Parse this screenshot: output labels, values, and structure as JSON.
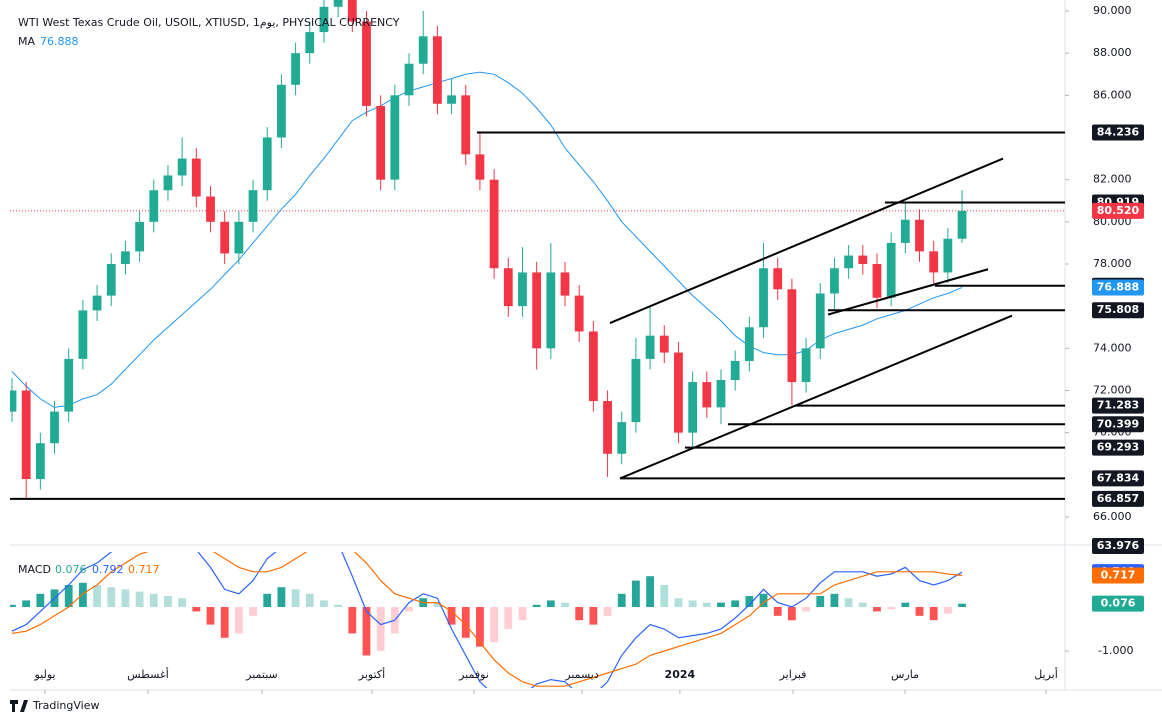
{
  "chart_data": {
    "type": "candlestick",
    "title": "WTI West Texas Crude Oil, USOIL, XTIUSD, 1يوم, PHYSICAL CURRENCY",
    "up_color": "#22ab94",
    "down_color": "#f23645",
    "xlim": [
      -0.14,
      74.26
    ],
    "xticks": [
      {
        "value": 2.33,
        "label": "يوليو"
      },
      {
        "value": 9.59,
        "label": "أغسطس"
      },
      {
        "value": 17.63,
        "label": "سبتمبر"
      },
      {
        "value": 25.39,
        "label": "أكتوبر"
      },
      {
        "value": 32.58,
        "label": "نوفمبر"
      },
      {
        "value": 40.2,
        "label": "ديسمبر"
      },
      {
        "value": 47.1,
        "label": "2024"
      },
      {
        "value": 55.08,
        "label": "فبراير"
      },
      {
        "value": 62.98,
        "label": "مارس"
      },
      {
        "value": 72.92,
        "label": "أبريل"
      }
    ],
    "ylim": [
      66,
      90
    ],
    "yticks": [
      {
        "value": 90,
        "label": "90.000"
      },
      {
        "value": 88,
        "label": "88.000"
      },
      {
        "value": 86,
        "label": "86.000"
      },
      {
        "value": 82,
        "label": "82.000"
      },
      {
        "value": 80,
        "label": "80.000"
      },
      {
        "value": 78,
        "label": "78.000"
      },
      {
        "value": 74,
        "label": "74.000"
      },
      {
        "value": 72,
        "label": "72.000"
      },
      {
        "value": 70,
        "label": "70.000"
      },
      {
        "value": 66,
        "label": "66.000"
      }
    ],
    "candles": [
      [
        71.0,
        72.6,
        70.5,
        72.0
      ],
      [
        72.0,
        72.4,
        66.9,
        67.8
      ],
      [
        67.8,
        70.0,
        67.3,
        69.5
      ],
      [
        69.5,
        71.5,
        69.0,
        71.0
      ],
      [
        71.0,
        74.0,
        70.5,
        73.5
      ],
      [
        73.5,
        76.3,
        73.0,
        75.8
      ],
      [
        75.8,
        77.0,
        75.3,
        76.5
      ],
      [
        76.5,
        78.5,
        76.0,
        78.0
      ],
      [
        78.0,
        79.1,
        77.5,
        78.6
      ],
      [
        78.6,
        80.5,
        78.1,
        80.0
      ],
      [
        80.0,
        82.0,
        79.5,
        81.5
      ],
      [
        81.5,
        82.7,
        81.0,
        82.2
      ],
      [
        82.2,
        84.0,
        81.7,
        83.0
      ],
      [
        83.0,
        83.5,
        80.7,
        81.2
      ],
      [
        81.2,
        81.7,
        79.5,
        80.0
      ],
      [
        80.0,
        80.5,
        78.0,
        78.5
      ],
      [
        78.5,
        80.5,
        78.0,
        80.0
      ],
      [
        80.0,
        82.0,
        79.5,
        81.5
      ],
      [
        81.5,
        84.5,
        81.0,
        84.0
      ],
      [
        84.0,
        87.0,
        83.5,
        86.5
      ],
      [
        86.5,
        88.5,
        86.0,
        88.0
      ],
      [
        88.0,
        89.5,
        87.5,
        89.0
      ],
      [
        89.0,
        90.7,
        88.5,
        90.2
      ],
      [
        90.2,
        91.3,
        89.7,
        90.8
      ],
      [
        90.8,
        91.3,
        89.0,
        89.5
      ],
      [
        89.5,
        90.0,
        85.0,
        85.5
      ],
      [
        85.5,
        86.0,
        81.5,
        82.0
      ],
      [
        82.0,
        86.5,
        81.5,
        86.0
      ],
      [
        86.0,
        88.0,
        85.5,
        87.5
      ],
      [
        87.5,
        90.0,
        87.0,
        88.8
      ],
      [
        88.8,
        89.3,
        85.1,
        85.6
      ],
      [
        85.6,
        86.8,
        85.1,
        86.0
      ],
      [
        86.0,
        86.5,
        82.7,
        83.2
      ],
      [
        83.2,
        84.3,
        81.5,
        82.0
      ],
      [
        82.0,
        82.5,
        77.3,
        77.8
      ],
      [
        77.8,
        78.3,
        75.5,
        76.0
      ],
      [
        76.0,
        78.8,
        75.5,
        77.6
      ],
      [
        77.6,
        78.1,
        73.0,
        74.0
      ],
      [
        74.0,
        79.0,
        73.5,
        77.6
      ],
      [
        77.6,
        78.1,
        76.0,
        76.5
      ],
      [
        76.5,
        77.0,
        74.3,
        74.8
      ],
      [
        74.8,
        75.3,
        71.0,
        71.5
      ],
      [
        71.5,
        72.0,
        67.9,
        69.0
      ],
      [
        69.0,
        71.0,
        68.5,
        70.5
      ],
      [
        70.5,
        74.5,
        70.0,
        73.5
      ],
      [
        73.5,
        76.0,
        73.0,
        74.6
      ],
      [
        74.6,
        75.1,
        73.3,
        73.8
      ],
      [
        73.8,
        74.3,
        69.5,
        70.0
      ],
      [
        70.0,
        72.9,
        69.3,
        72.4
      ],
      [
        72.4,
        72.9,
        70.7,
        71.2
      ],
      [
        71.2,
        73.0,
        70.4,
        72.5
      ],
      [
        72.5,
        73.9,
        72.0,
        73.4
      ],
      [
        73.4,
        75.5,
        72.9,
        75.0
      ],
      [
        75.0,
        79.0,
        74.5,
        77.8
      ],
      [
        77.8,
        78.3,
        76.3,
        76.8
      ],
      [
        76.8,
        77.3,
        71.3,
        72.4
      ],
      [
        72.4,
        74.5,
        71.9,
        74.0
      ],
      [
        74.0,
        77.1,
        73.5,
        76.6
      ],
      [
        76.6,
        78.3,
        75.8,
        77.8
      ],
      [
        77.8,
        78.9,
        77.3,
        78.4
      ],
      [
        78.4,
        78.9,
        77.5,
        78.0
      ],
      [
        78.0,
        78.5,
        75.9,
        76.4
      ],
      [
        76.4,
        79.5,
        76.0,
        79.0
      ],
      [
        79.0,
        80.9,
        78.5,
        80.1
      ],
      [
        80.1,
        80.6,
        78.1,
        78.6
      ],
      [
        78.6,
        79.1,
        77.0,
        77.6
      ],
      [
        77.6,
        79.7,
        77.1,
        79.2
      ],
      [
        79.2,
        81.5,
        79.0,
        80.52
      ]
    ],
    "ma": {
      "name": "MA",
      "color": "#2196f3",
      "values": [
        72.9,
        72.2,
        71.6,
        71.2,
        71.3,
        71.6,
        71.8,
        72.3,
        73.0,
        73.7,
        74.4,
        75.0,
        75.6,
        76.2,
        76.8,
        77.5,
        78.2,
        79.0,
        79.8,
        80.6,
        81.3,
        82.2,
        83.0,
        83.9,
        84.8,
        85.2,
        85.5,
        85.9,
        86.2,
        86.4,
        86.6,
        86.8,
        87.0,
        87.1,
        87.0,
        86.6,
        86.1,
        85.4,
        84.6,
        83.5,
        82.7,
        81.9,
        81.0,
        80.0,
        79.3,
        78.6,
        77.9,
        77.2,
        76.5,
        75.9,
        75.3,
        74.6,
        74.1,
        73.8,
        73.7,
        73.7,
        73.9,
        74.4,
        74.7,
        74.9,
        75.1,
        75.4,
        75.6,
        75.8,
        76.1,
        76.4,
        76.6,
        76.888
      ]
    },
    "levels": [
      {
        "value": 84.236,
        "from": 32.79
      },
      {
        "value": 80.919,
        "from": 61.56
      },
      {
        "value": 76.969,
        "from": 65.09
      },
      {
        "value": 75.808,
        "from": 57.55
      },
      {
        "value": 71.283,
        "from": 55.22
      },
      {
        "value": 70.399,
        "from": 50.49
      },
      {
        "value": 69.293,
        "from": 47.46
      },
      {
        "value": 67.834,
        "from": 42.88
      },
      {
        "value": 66.857,
        "from": -0.14
      }
    ],
    "current": {
      "value": 80.52,
      "label": "80.520",
      "color": "#f23645"
    },
    "trendlines": [
      [
        [
          42.17,
          75.2
        ],
        [
          69.89,
          83.0
        ]
      ],
      [
        [
          42.88,
          67.83
        ],
        [
          70.52,
          75.55
        ]
      ],
      [
        [
          57.55,
          75.6
        ],
        [
          68.83,
          77.75
        ]
      ]
    ],
    "scale_marker": 63.976,
    "macd": {
      "name": "MACD",
      "ylim": [
        -1.84,
        1.25
      ],
      "yticks": [
        {
          "value": -1,
          "label": "-1.000"
        }
      ],
      "hist": [
        0.05,
        0.15,
        0.3,
        0.4,
        0.5,
        0.55,
        0.5,
        0.45,
        0.4,
        0.35,
        0.3,
        0.25,
        0.2,
        -0.1,
        -0.4,
        -0.7,
        -0.6,
        -0.2,
        0.3,
        0.45,
        0.4,
        0.3,
        0.15,
        0.05,
        -0.6,
        -1.1,
        -1.0,
        -0.6,
        -0.1,
        0.2,
        0.1,
        -0.4,
        -0.7,
        -0.9,
        -0.8,
        -0.5,
        -0.3,
        0.05,
        0.15,
        0.1,
        -0.3,
        -0.4,
        -0.2,
        0.3,
        0.6,
        0.7,
        0.5,
        0.2,
        0.15,
        0.1,
        0.1,
        0.15,
        0.25,
        0.3,
        -0.2,
        -0.3,
        -0.1,
        0.25,
        0.3,
        0.2,
        0.1,
        -0.1,
        -0.05,
        0.1,
        -0.2,
        -0.3,
        -0.15,
        0.076
      ],
      "macd_color": "#2962ff",
      "macd": [
        -0.55,
        -0.4,
        -0.1,
        0.2,
        0.5,
        0.85,
        1.0,
        1.25,
        1.4,
        1.55,
        1.6,
        1.65,
        1.6,
        1.3,
        0.9,
        0.4,
        0.3,
        0.6,
        1.1,
        1.35,
        1.5,
        1.6,
        1.55,
        1.45,
        0.7,
        -0.1,
        -0.4,
        -0.3,
        0.1,
        0.3,
        0.2,
        -0.5,
        -1.1,
        -1.7,
        -2.0,
        -2.0,
        -2.0,
        -1.75,
        -1.65,
        -1.7,
        -2.0,
        -2.0,
        -1.7,
        -1.1,
        -0.7,
        -0.4,
        -0.5,
        -0.7,
        -0.65,
        -0.6,
        -0.5,
        -0.25,
        0.05,
        0.4,
        0.1,
        0.0,
        0.2,
        0.55,
        0.8,
        0.8,
        0.8,
        0.7,
        0.75,
        0.9,
        0.6,
        0.5,
        0.6,
        0.792
      ],
      "signal_color": "#ff6d00",
      "signal": [
        -0.6,
        -0.55,
        -0.4,
        -0.2,
        0.0,
        0.3,
        0.5,
        0.8,
        1.0,
        1.2,
        1.3,
        1.4,
        1.4,
        1.4,
        1.3,
        1.1,
        0.9,
        0.8,
        0.8,
        0.9,
        1.1,
        1.3,
        1.4,
        1.4,
        1.3,
        1.0,
        0.6,
        0.3,
        0.2,
        0.1,
        0.1,
        -0.1,
        -0.4,
        -0.8,
        -1.2,
        -1.5,
        -1.7,
        -1.8,
        -1.8,
        -1.8,
        -1.7,
        -1.6,
        -1.5,
        -1.4,
        -1.3,
        -1.1,
        -1.0,
        -0.9,
        -0.8,
        -0.7,
        -0.6,
        -0.4,
        -0.2,
        0.1,
        0.3,
        0.3,
        0.3,
        0.3,
        0.5,
        0.6,
        0.7,
        0.8,
        0.8,
        0.8,
        0.8,
        0.8,
        0.75,
        0.717
      ]
    },
    "brand": "TradingView"
  }
}
